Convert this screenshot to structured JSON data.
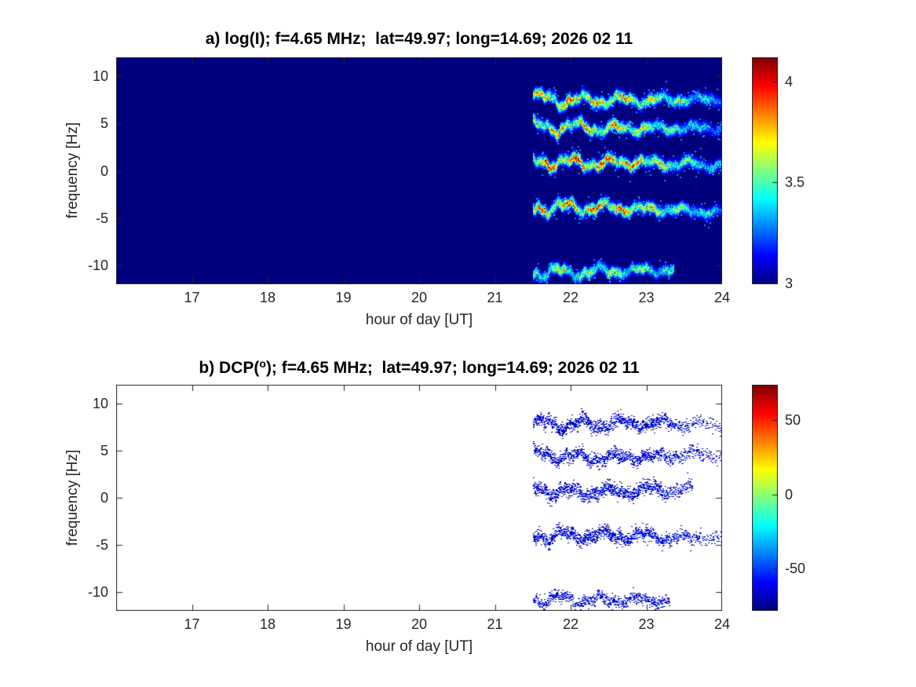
{
  "figure": {
    "background_color": "#ffffff",
    "axes_color": "#262626",
    "colormap_name": "jet",
    "deep_blue_background": "#00007f"
  },
  "chart_data": [
    {
      "type": "heatmap",
      "panel": "a",
      "title": "a) log(I); f=4.65 MHz;  lat=49.97; long=14.69; 2026 02 11",
      "xlabel": "hour of day [UT]",
      "ylabel": "frequency [Hz]",
      "xlim": [
        16,
        24
      ],
      "ylim": [
        -12,
        12
      ],
      "xticks": [
        17,
        18,
        19,
        20,
        21,
        22,
        23,
        24
      ],
      "yticks": [
        10,
        5,
        0,
        -5,
        -10
      ],
      "colormap": "jet",
      "colorbar_ticks": [
        4,
        3.5,
        3
      ],
      "clim": [
        3,
        4.12
      ],
      "background_value": 3,
      "legend_position": "right-colorbar",
      "grid": false,
      "signal": {
        "onset_hour": 21.5,
        "description": "Uniform dark-blue background (log intensity = 3) until 21.5 UT, then five wavy horizontal Doppler traces with red/orange cores (log I up to ~4.1) fading to yellow, green, cyan and blue speckled fringes; traces weaken after ~23 UT",
        "bands": [
          {
            "center_hz": 7.7,
            "end_hour": 24,
            "strength": 1.0,
            "sigma_hz": 0.5,
            "drift_hz_per_hour": 0
          },
          {
            "center_hz": 4.6,
            "end_hour": 24,
            "strength": 0.95,
            "sigma_hz": 0.45,
            "drift_hz_per_hour": -0.05
          },
          {
            "center_hz": 0.9,
            "end_hour": 24,
            "strength": 1.1,
            "sigma_hz": 0.55,
            "drift_hz_per_hour": -0.05
          },
          {
            "center_hz": -3.9,
            "end_hour": 24,
            "strength": 1.05,
            "sigma_hz": 0.5,
            "drift_hz_per_hour": -0.12
          },
          {
            "center_hz": -10.6,
            "end_hour": 23.35,
            "strength": 0.75,
            "sigma_hz": 0.4,
            "drift_hz_per_hour": 0
          }
        ],
        "peak_value": 4.1
      }
    },
    {
      "type": "heatmap",
      "panel": "b",
      "title": "b) DCP(°); f=4.65 MHz;  lat=49.97; long=14.69; 2026 02 11",
      "title_parts": {
        "prefix": "b) DCP(",
        "sup": "o",
        "suffix": "); f=4.65 MHz;  lat=49.97; long=14.69; 2026 02 11"
      },
      "xlabel": "hour of day [UT]",
      "ylabel": "frequency [Hz]",
      "xlim": [
        16,
        24
      ],
      "ylim": [
        -12,
        12
      ],
      "xticks": [
        17,
        18,
        19,
        20,
        21,
        22,
        23,
        24
      ],
      "yticks": [
        10,
        5,
        0,
        -5,
        -10
      ],
      "colormap": "jet",
      "colorbar_ticks": [
        50,
        0,
        -50
      ],
      "clim": [
        -78,
        74
      ],
      "legend_position": "right-colorbar",
      "grid": false,
      "signal": {
        "onset_hour": 21.5,
        "description": "White background; the same five wavy Doppler traces drawn as sparse dark-blue / navy speckles (DCP roughly -45 to -76 degrees), densest 21.5-23 UT, sparse afterwards",
        "bands": [
          {
            "center_hz": 7.7,
            "end_hour": 24,
            "strength": 1.0,
            "sigma_hz": 0.35,
            "drift_hz_per_hour": 0
          },
          {
            "center_hz": 4.6,
            "end_hour": 24,
            "strength": 0.95,
            "sigma_hz": 0.33,
            "drift_hz_per_hour": -0.05
          },
          {
            "center_hz": 0.9,
            "end_hour": 23.6,
            "strength": 1.0,
            "sigma_hz": 0.38,
            "drift_hz_per_hour": -0.05
          },
          {
            "center_hz": -3.9,
            "end_hour": 24,
            "strength": 1.0,
            "sigma_hz": 0.35,
            "drift_hz_per_hour": -0.12
          },
          {
            "center_hz": -10.6,
            "end_hour": 23.3,
            "strength": 0.7,
            "sigma_hz": 0.3,
            "drift_hz_per_hour": 0
          }
        ],
        "typical_value_deg": -70
      }
    }
  ]
}
